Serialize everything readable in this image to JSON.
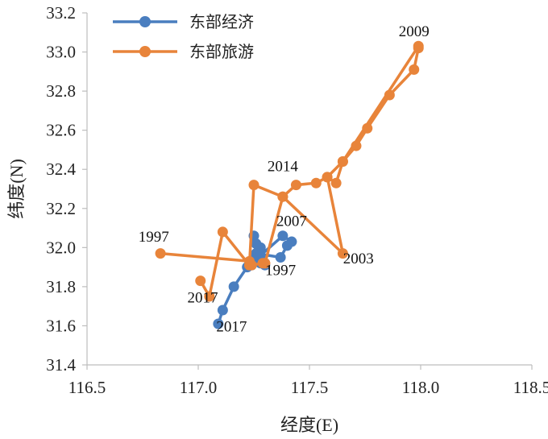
{
  "chart_data": {
    "type": "scatter",
    "xlabel": "经度(E)",
    "ylabel": "纬度(N)",
    "xlim": [
      116.5,
      118.5
    ],
    "ylim": [
      31.4,
      33.2
    ],
    "xticks": [
      "116.5",
      "117.0",
      "117.5",
      "118.0",
      "118.5"
    ],
    "yticks": [
      "31.4",
      "31.6",
      "31.8",
      "32.0",
      "32.2",
      "32.4",
      "32.6",
      "32.8",
      "33.0",
      "33.2"
    ],
    "grid": false,
    "legend": "top-left",
    "series": [
      {
        "name": "东部经济",
        "color": "#4a7ebf",
        "points": [
          [
            117.3,
            31.91
          ],
          [
            117.28,
            31.92
          ],
          [
            117.24,
            31.91
          ],
          [
            117.26,
            31.96
          ],
          [
            117.27,
            31.98
          ],
          [
            117.26,
            32.02
          ],
          [
            117.25,
            32.06
          ],
          [
            117.28,
            32.0
          ],
          [
            117.26,
            31.97
          ],
          [
            117.37,
            31.95
          ],
          [
            117.4,
            32.01
          ],
          [
            117.42,
            32.03
          ],
          [
            117.38,
            32.06
          ],
          [
            117.28,
            31.96
          ],
          [
            117.22,
            31.9
          ],
          [
            117.16,
            31.8
          ],
          [
            117.11,
            31.68
          ],
          [
            117.09,
            31.61
          ]
        ]
      },
      {
        "name": "东部旅游",
        "color": "#e8843a",
        "points": [
          [
            116.83,
            31.97
          ],
          [
            117.23,
            31.93
          ],
          [
            117.24,
            31.91
          ],
          [
            117.29,
            31.92
          ],
          [
            117.3,
            31.92
          ],
          [
            117.23,
            31.91
          ],
          [
            117.25,
            32.32
          ],
          [
            117.38,
            32.26
          ],
          [
            117.44,
            32.32
          ],
          [
            117.53,
            32.33
          ],
          [
            117.58,
            32.36
          ],
          [
            117.62,
            32.33
          ],
          [
            117.65,
            32.44
          ],
          [
            117.71,
            32.52
          ],
          [
            117.76,
            32.61
          ],
          [
            117.86,
            32.78
          ],
          [
            117.97,
            32.91
          ],
          [
            117.99,
            33.02
          ],
          [
            117.99,
            33.03
          ],
          [
            117.65,
            32.44
          ],
          [
            117.58,
            32.36
          ],
          [
            117.65,
            31.97
          ],
          [
            117.38,
            32.26
          ],
          [
            117.3,
            31.92
          ],
          [
            117.23,
            31.91
          ],
          [
            117.11,
            32.08
          ],
          [
            117.05,
            31.75
          ],
          [
            117.01,
            31.83
          ]
        ]
      }
    ],
    "annotations": [
      {
        "text": "2009",
        "x": 117.97,
        "y": 33.08
      },
      {
        "text": "2014",
        "x": 117.38,
        "y": 32.39
      },
      {
        "text": "2007",
        "x": 117.42,
        "y": 32.11
      },
      {
        "text": "1997",
        "x": 116.8,
        "y": 32.03
      },
      {
        "text": "1997",
        "x": 117.37,
        "y": 31.86
      },
      {
        "text": "2003",
        "x": 117.72,
        "y": 31.92
      },
      {
        "text": "2017",
        "x": 117.02,
        "y": 31.72
      },
      {
        "text": "2017",
        "x": 117.15,
        "y": 31.57
      }
    ]
  }
}
